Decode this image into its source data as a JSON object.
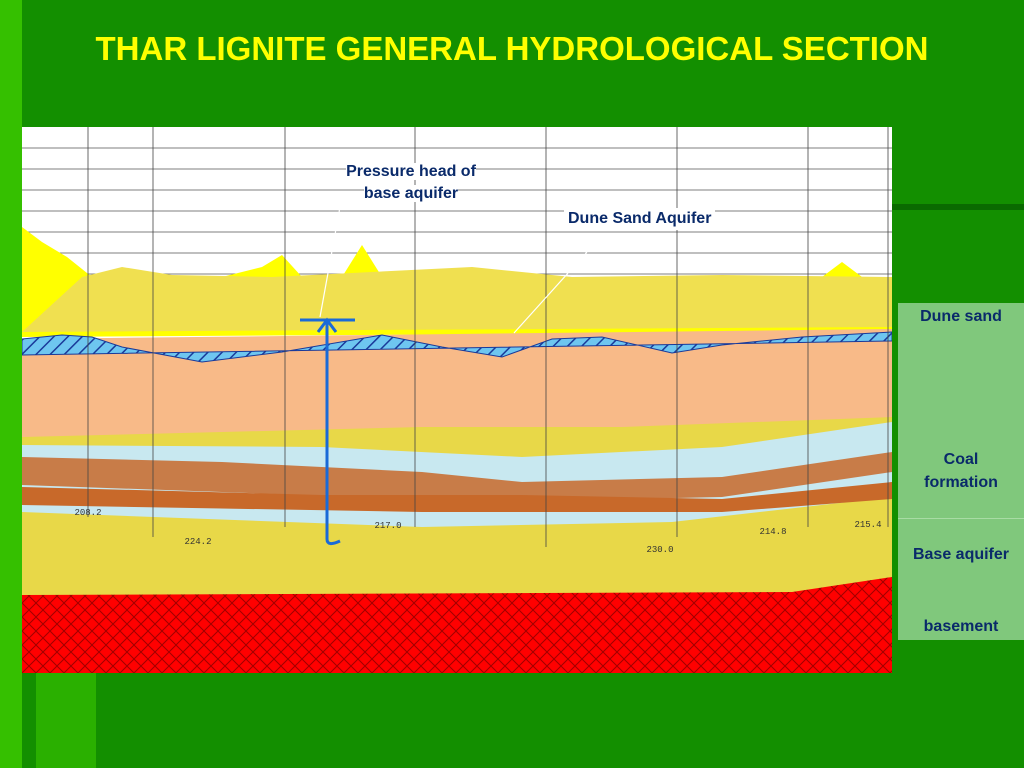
{
  "header": {
    "title": "THAR LIGNITE GENERAL HYDROLOGICAL SECTION"
  },
  "annotations": [
    "Pressure head of base aquifer",
    "Dune Sand Aquifer"
  ],
  "legend": [
    "Dune sand",
    "Coal formation",
    "Base aquifer",
    "basement"
  ],
  "depth_labels": [
    "208.2",
    "224.2",
    "217.0",
    "230.0",
    "214.8",
    "215.4"
  ]
}
